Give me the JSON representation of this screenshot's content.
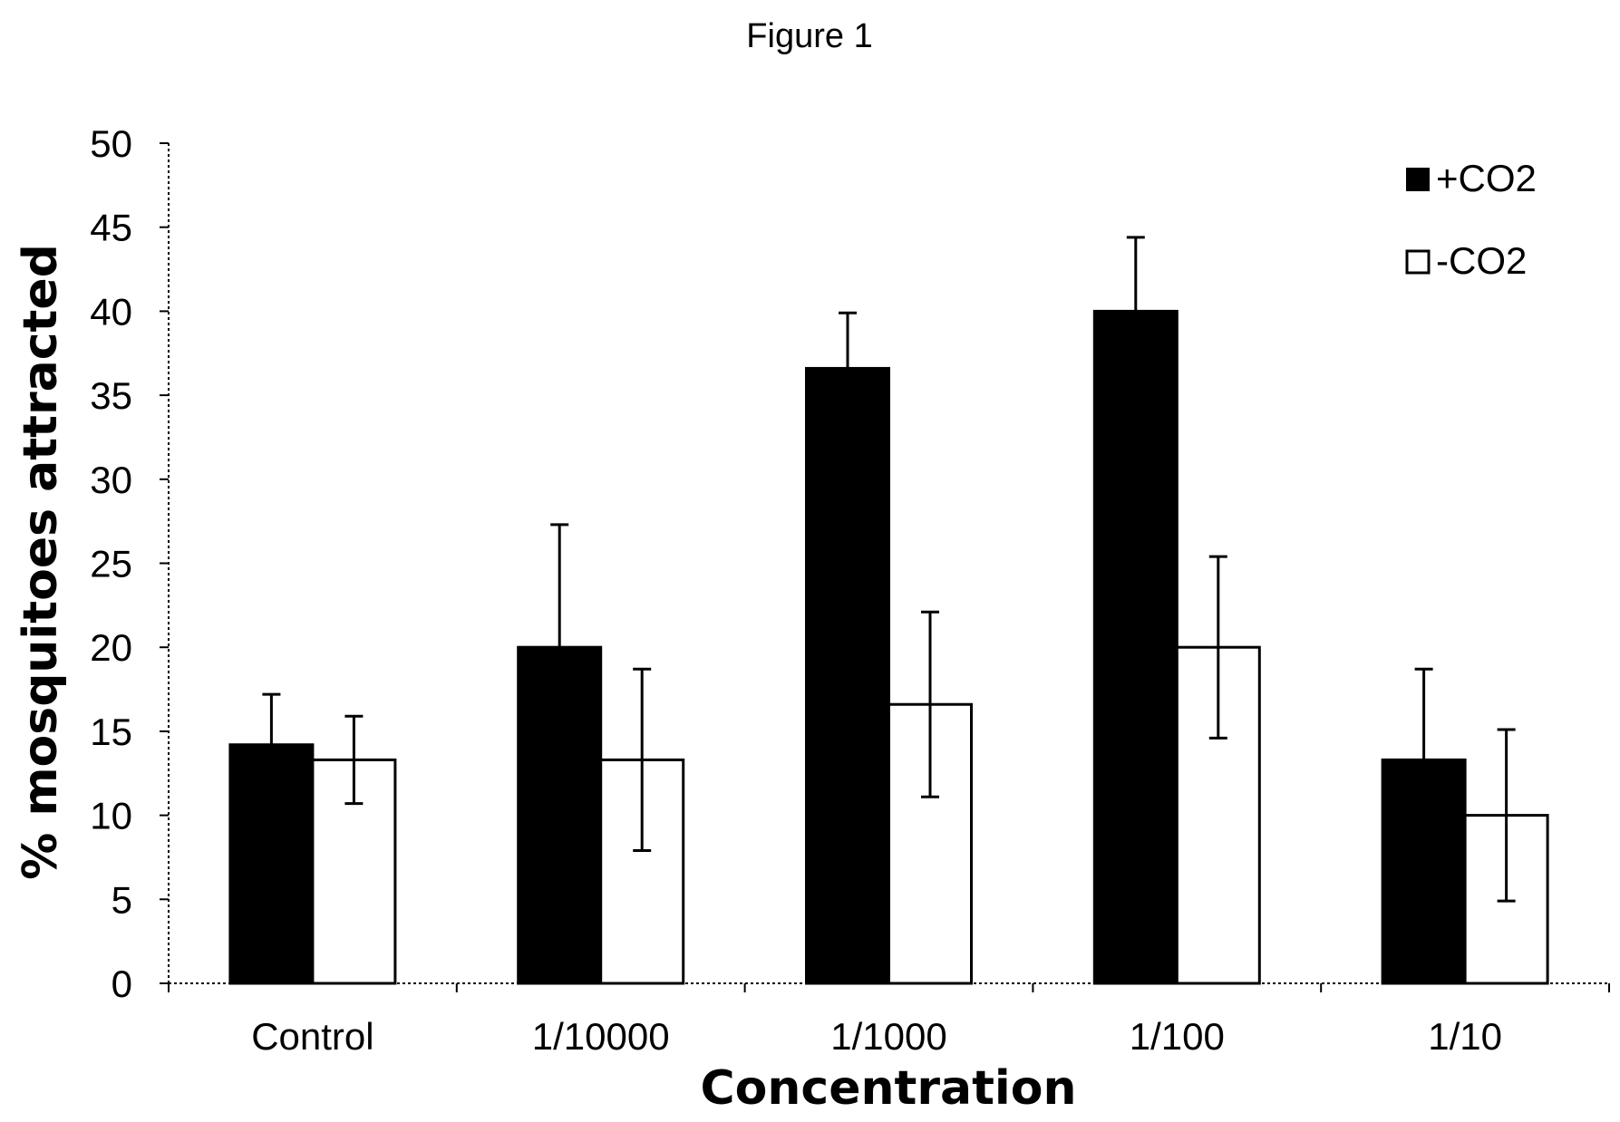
{
  "figure_title": "Figure 1",
  "chart_data": {
    "type": "bar",
    "title": "",
    "xlabel": "Concentration",
    "ylabel": "% mosquitoes attracted",
    "categories": [
      "Control",
      "1/10000",
      "1/1000",
      "1/100",
      "1/10"
    ],
    "ylim": [
      0,
      50
    ],
    "yticks": [
      "0",
      "5",
      "10",
      "15",
      "20",
      "25",
      "30",
      "35",
      "40",
      "45",
      "50"
    ],
    "grid": false,
    "legend_position": "top-right",
    "series": [
      {
        "name": "+CO2",
        "color": "#000000",
        "values": [
          14.2,
          20.0,
          36.6,
          40.0,
          13.3
        ],
        "errors": [
          3.0,
          7.3,
          3.3,
          4.4,
          5.4
        ]
      },
      {
        "name": "-CO2",
        "color": "#ffffff",
        "values": [
          13.3,
          13.3,
          16.6,
          20.0,
          10.0
        ],
        "errors": [
          2.6,
          5.4,
          5.5,
          5.4,
          5.1
        ]
      }
    ]
  }
}
